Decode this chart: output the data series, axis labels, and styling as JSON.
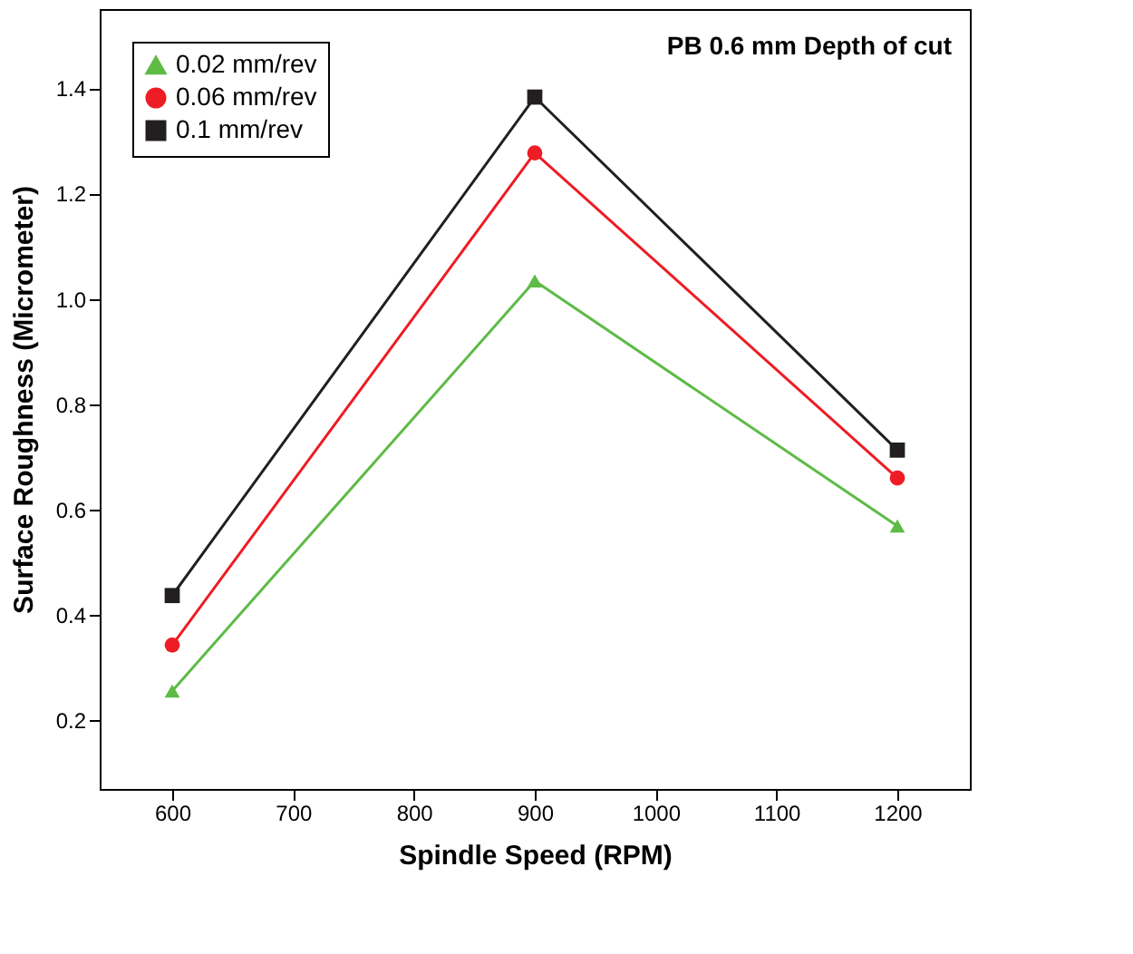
{
  "chart_data": {
    "type": "line",
    "xlabel": "Spindle Speed (RPM)",
    "ylabel": "Surface Roughness (Micrometer)",
    "x": [
      600,
      900,
      1200
    ],
    "series": [
      {
        "name": "0.02 mm/rev",
        "color": "#5dbb46",
        "marker": "triangle",
        "values": [
          0.256,
          1.034,
          0.569
        ]
      },
      {
        "name": "0.06 mm/rev",
        "color": "#ee1c24",
        "marker": "circle",
        "values": [
          0.343,
          1.277,
          0.66
        ]
      },
      {
        "name": "0.1 mm/rev",
        "color": "#231f20",
        "marker": "square",
        "values": [
          0.437,
          1.383,
          0.713
        ]
      }
    ],
    "xlim": [
      540,
      1260
    ],
    "xticks": [
      600,
      700,
      800,
      900,
      1000,
      1100,
      1200
    ],
    "ylim": [
      0.07,
      1.55
    ],
    "yticks": [
      0.2,
      0.4,
      0.6,
      0.8,
      {
        "value": 1,
        "label": "1.0"
      },
      1.2,
      1.4
    ],
    "annotations": [
      "PB 0.6 mm Depth of cut"
    ],
    "legend": "top left",
    "grid": false
  }
}
